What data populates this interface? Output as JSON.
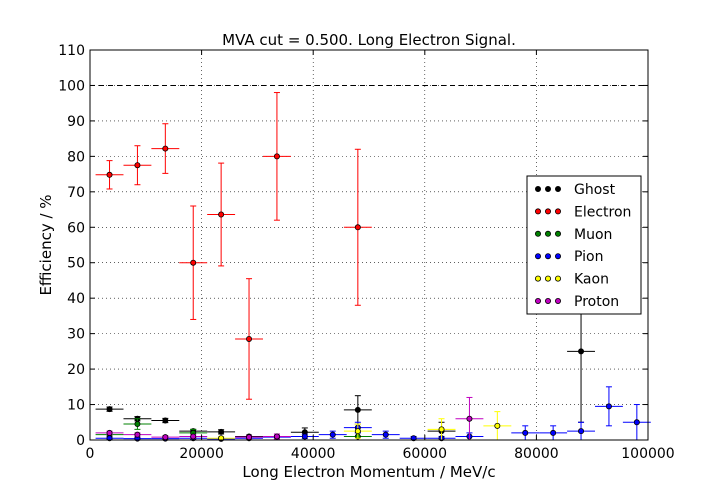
{
  "chart_data": {
    "type": "scatter",
    "title": "MVA cut = 0.500. Long Electron Signal.",
    "xlabel": "Long Electron Momentum / MeV/c",
    "ylabel": "Efficiency / %",
    "xlim": [
      0,
      100000
    ],
    "ylim": [
      0,
      110
    ],
    "x_ticks": [
      "0",
      "20000",
      "40000",
      "60000",
      "80000",
      "100000"
    ],
    "y_ticks": [
      "0",
      "10",
      "20",
      "30",
      "40",
      "50",
      "60",
      "70",
      "80",
      "90",
      "100",
      "110"
    ],
    "reference_line": 100,
    "grid": true,
    "legend_position": "right",
    "series": [
      {
        "name": "Ghost",
        "color": "#000000",
        "points": [
          {
            "x": 3500,
            "y": 8.7,
            "xerr": 2500,
            "yerr": 0.6
          },
          {
            "x": 8500,
            "y": 6.0,
            "xerr": 2500,
            "yerr": 0.6
          },
          {
            "x": 13500,
            "y": 5.5,
            "xerr": 2500,
            "yerr": 0.6
          },
          {
            "x": 18500,
            "y": 2.5,
            "xerr": 2500,
            "yerr": 0.5
          },
          {
            "x": 23500,
            "y": 2.3,
            "xerr": 2500,
            "yerr": 0.6
          },
          {
            "x": 28500,
            "y": 1.0,
            "xerr": 2500,
            "yerr": 0.4
          },
          {
            "x": 38500,
            "y": 2.2,
            "xerr": 2500,
            "yerr": 1.2
          },
          {
            "x": 48000,
            "y": 8.5,
            "xerr": 2500,
            "yerr": 4.0
          },
          {
            "x": 63000,
            "y": 2.5,
            "xerr": 2500,
            "yerr": 2.5
          },
          {
            "x": 88000,
            "y": 25.0,
            "xerr": 2500,
            "yerr": 20.0
          }
        ]
      },
      {
        "name": "Electron",
        "color": "#ff0000",
        "points": [
          {
            "x": 3500,
            "y": 74.8,
            "xerr": 2500,
            "yerr": 4.0
          },
          {
            "x": 8500,
            "y": 77.5,
            "xerr": 2500,
            "yerr": 5.5
          },
          {
            "x": 13500,
            "y": 82.2,
            "xerr": 2500,
            "yerr": 7.0
          },
          {
            "x": 18500,
            "y": 50.0,
            "xerr": 2500,
            "yerr": 16.0
          },
          {
            "x": 23500,
            "y": 63.6,
            "xerr": 2500,
            "yerr": 14.5
          },
          {
            "x": 28500,
            "y": 28.5,
            "xerr": 2500,
            "yerr": 17.0
          },
          {
            "x": 33500,
            "y": 80.0,
            "xerr": 2500,
            "yerr": 18.0
          },
          {
            "x": 48000,
            "y": 60.0,
            "xerr": 2500,
            "yerr": 22.0
          }
        ]
      },
      {
        "name": "Muon",
        "color": "#008000",
        "points": [
          {
            "x": 3500,
            "y": 1.5,
            "xerr": 2500,
            "yerr": 0.5
          },
          {
            "x": 8500,
            "y": 4.5,
            "xerr": 2500,
            "yerr": 1.5
          },
          {
            "x": 18500,
            "y": 2.0,
            "xerr": 2500,
            "yerr": 1.0
          },
          {
            "x": 48000,
            "y": 1.0,
            "xerr": 2500,
            "yerr": 1.0
          }
        ]
      },
      {
        "name": "Pion",
        "color": "#0000ff",
        "points": [
          {
            "x": 3500,
            "y": 0.5,
            "xerr": 2500,
            "yerr": 0.3
          },
          {
            "x": 8500,
            "y": 0.4,
            "xerr": 2500,
            "yerr": 0.3
          },
          {
            "x": 13500,
            "y": 0.4,
            "xerr": 2500,
            "yerr": 0.3
          },
          {
            "x": 18500,
            "y": 0.5,
            "xerr": 2500,
            "yerr": 0.3
          },
          {
            "x": 23500,
            "y": 0.3,
            "xerr": 2500,
            "yerr": 0.3
          },
          {
            "x": 28500,
            "y": 0.5,
            "xerr": 2500,
            "yerr": 0.3
          },
          {
            "x": 33500,
            "y": 0.8,
            "xerr": 2500,
            "yerr": 0.5
          },
          {
            "x": 38500,
            "y": 1.0,
            "xerr": 2500,
            "yerr": 0.6
          },
          {
            "x": 43500,
            "y": 1.5,
            "xerr": 2500,
            "yerr": 1.0
          },
          {
            "x": 48000,
            "y": 3.5,
            "xerr": 2500,
            "yerr": 1.5
          },
          {
            "x": 53000,
            "y": 1.5,
            "xerr": 2500,
            "yerr": 1.0
          },
          {
            "x": 58000,
            "y": 0.5,
            "xerr": 2500,
            "yerr": 0.5
          },
          {
            "x": 63000,
            "y": 0.5,
            "xerr": 2500,
            "yerr": 0.5
          },
          {
            "x": 68000,
            "y": 1.0,
            "xerr": 2500,
            "yerr": 1.0
          },
          {
            "x": 78000,
            "y": 2.0,
            "xerr": 2500,
            "yerr": 2.0
          },
          {
            "x": 83000,
            "y": 2.0,
            "xerr": 2500,
            "yerr": 2.0
          },
          {
            "x": 88000,
            "y": 2.5,
            "xerr": 2500,
            "yerr": 2.5
          },
          {
            "x": 93000,
            "y": 9.5,
            "xerr": 2500,
            "yerr": 5.5
          },
          {
            "x": 98000,
            "y": 5.0,
            "xerr": 2500,
            "yerr": 5.0
          }
        ]
      },
      {
        "name": "Kaon",
        "color": "#ffff00",
        "points": [
          {
            "x": 23500,
            "y": 0.5,
            "xerr": 2500,
            "yerr": 0.5
          },
          {
            "x": 48000,
            "y": 2.5,
            "xerr": 2500,
            "yerr": 2.0
          },
          {
            "x": 63000,
            "y": 3.0,
            "xerr": 2500,
            "yerr": 3.0
          },
          {
            "x": 73000,
            "y": 4.0,
            "xerr": 2500,
            "yerr": 4.0
          }
        ]
      },
      {
        "name": "Proton",
        "color": "#c000c0",
        "points": [
          {
            "x": 3500,
            "y": 2.0,
            "xerr": 2500,
            "yerr": 0.5
          },
          {
            "x": 8500,
            "y": 1.5,
            "xerr": 2500,
            "yerr": 0.5
          },
          {
            "x": 13500,
            "y": 0.8,
            "xerr": 2500,
            "yerr": 0.4
          },
          {
            "x": 18500,
            "y": 1.0,
            "xerr": 2500,
            "yerr": 0.5
          },
          {
            "x": 28500,
            "y": 0.8,
            "xerr": 2500,
            "yerr": 0.5
          },
          {
            "x": 33500,
            "y": 1.0,
            "xerr": 2500,
            "yerr": 0.7
          },
          {
            "x": 68000,
            "y": 6.0,
            "xerr": 2500,
            "yerr": 6.0
          }
        ]
      }
    ]
  }
}
